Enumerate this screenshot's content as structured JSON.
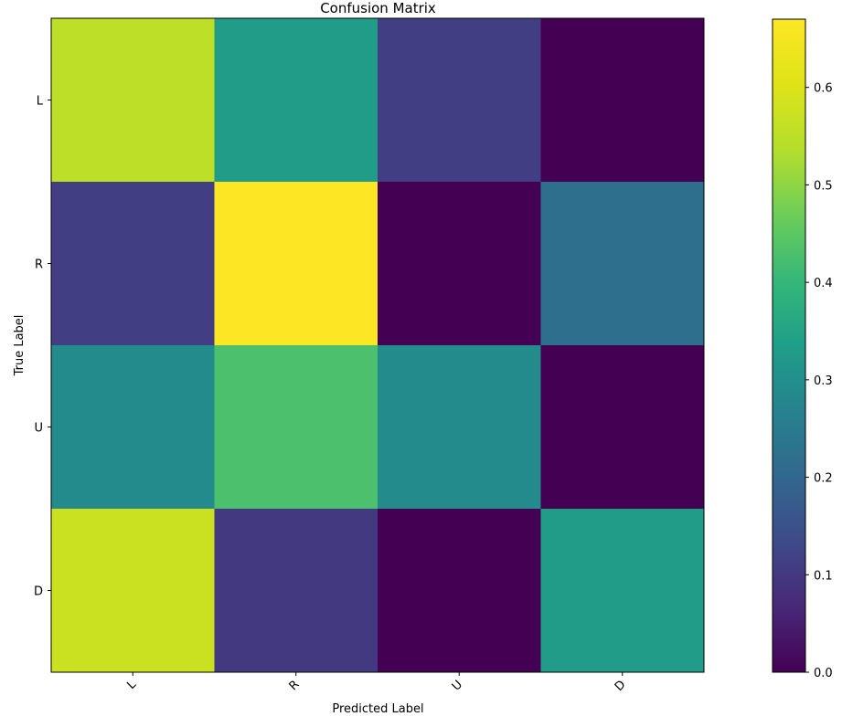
{
  "chart_data": {
    "type": "heatmap",
    "title": "Confusion Matrix",
    "xlabel": "Predicted Label",
    "ylabel": "True Label",
    "x_categories": [
      "L",
      "R",
      "U",
      "D"
    ],
    "y_categories": [
      "L",
      "R",
      "U",
      "D"
    ],
    "values": [
      [
        0.55,
        0.33,
        0.11,
        0.0
      ],
      [
        0.11,
        0.67,
        0.0,
        0.22
      ],
      [
        0.29,
        0.43,
        0.29,
        0.0
      ],
      [
        0.57,
        0.1,
        0.0,
        0.33
      ]
    ],
    "x_tick_rotation": 45,
    "colormap": "viridis",
    "colorbar": {
      "vmin": 0.0,
      "vmax": 0.67,
      "ticks": [
        0.0,
        0.1,
        0.2,
        0.3,
        0.4,
        0.5,
        0.6
      ],
      "tick_labels": [
        "0.0",
        "0.1",
        "0.2",
        "0.3",
        "0.4",
        "0.5",
        "0.6"
      ]
    },
    "grid": false
  }
}
